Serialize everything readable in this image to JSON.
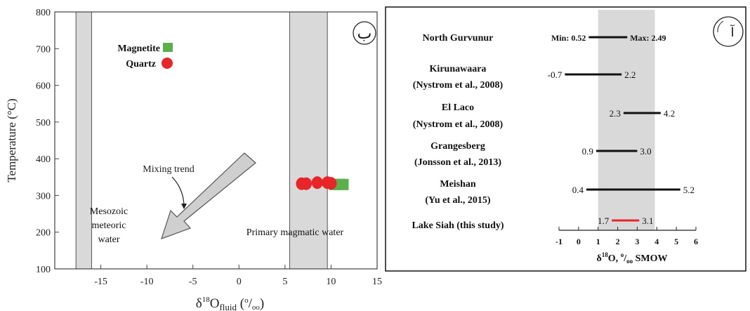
{
  "chart_data": [
    {
      "type": "scatter",
      "panel_label": "ب",
      "xlabel_main": "δ",
      "xlabel_sup": "18",
      "xlabel_o": "O",
      "xlabel_sub": "fluid",
      "xlabel_unit_open": " (",
      "xlabel_unit_sup": "o",
      "xlabel_unit_mid": "/",
      "xlabel_unit_sub": "oo",
      "xlabel_unit_close": ")",
      "ylabel": "Temperature (°C)",
      "xlim": [
        -20,
        15
      ],
      "ylim": [
        100,
        800
      ],
      "x_ticks": [
        "-15",
        "-10",
        "-5",
        "0",
        "5",
        "10",
        "15"
      ],
      "x_tick_values": [
        -15,
        -10,
        -5,
        0,
        5,
        10,
        15
      ],
      "y_ticks": [
        "100",
        "200",
        "300",
        "400",
        "500",
        "600",
        "700",
        "800"
      ],
      "y_tick_values": [
        100,
        200,
        300,
        400,
        500,
        600,
        700,
        800
      ],
      "bands": [
        {
          "x": [
            -17.7,
            -16.0
          ],
          "label_lines": [
            "Mesozoic",
            "meteoric",
            "water"
          ]
        },
        {
          "x": [
            5.5,
            9.6
          ],
          "label_lines": [
            "Primary magmatic water"
          ]
        }
      ],
      "series": [
        {
          "name": "Magnetite",
          "color": "#5ab04b",
          "marker": "square",
          "points": [
            [
              10.4,
              330
            ],
            [
              10.9,
              330
            ],
            [
              11.3,
              330
            ]
          ]
        },
        {
          "name": "Quartz",
          "color": "#e8262a",
          "marker": "circle",
          "points": [
            [
              6.8,
              332
            ],
            [
              7.3,
              332
            ],
            [
              8.5,
              335
            ],
            [
              9.6,
              335
            ],
            [
              10.0,
              333
            ]
          ]
        }
      ],
      "annotation": "Mixing trend"
    },
    {
      "type": "range",
      "panel_label": "آ",
      "xlabel_delta": "δ",
      "xlabel_sup": "18",
      "xlabel_rest": "O, ",
      "xlabel_unit_sup": "o",
      "xlabel_unit_mid": "/",
      "xlabel_unit_sub": "oo",
      "xlabel_tail": " SMOW",
      "xlim": [
        -1,
        6
      ],
      "x_ticks": [
        "-1",
        "0",
        "1",
        "2",
        "3",
        "4",
        "5",
        "6"
      ],
      "x_tick_values": [
        -1,
        0,
        1,
        2,
        3,
        4,
        5,
        6
      ],
      "shaded_band": [
        1,
        3.9
      ],
      "rows": [
        {
          "label": [
            "North Gurvunur"
          ],
          "min": 0.52,
          "max": 2.49,
          "min_label": "Min: 0.52",
          "max_label": "Max: 2.49",
          "color": "#111111"
        },
        {
          "label": [
            "Kirunawaara",
            "(Nystrom et al., 2008)"
          ],
          "min": -0.7,
          "max": 2.2,
          "min_label": "-0.7",
          "max_label": "2.2",
          "color": "#111111"
        },
        {
          "label": [
            "El Laco",
            "(Nystrom et al., 2008)"
          ],
          "min": 2.3,
          "max": 4.2,
          "min_label": "2.3",
          "max_label": "4.2",
          "color": "#111111"
        },
        {
          "label": [
            "Grangesberg",
            "(Jonsson et al., 2013)"
          ],
          "min": 0.9,
          "max": 3.0,
          "min_label": "0.9",
          "max_label": "3.0",
          "color": "#111111"
        },
        {
          "label": [
            "Meishan",
            "(Yu et al., 2015)"
          ],
          "min": 0.4,
          "max": 5.2,
          "min_label": "0.4",
          "max_label": "5.2",
          "color": "#111111"
        },
        {
          "label": [
            "Lake Siah (this study)"
          ],
          "min": 1.7,
          "max": 3.1,
          "min_label": "1.7",
          "max_label": "3.1",
          "color": "#e8262a"
        }
      ]
    }
  ]
}
